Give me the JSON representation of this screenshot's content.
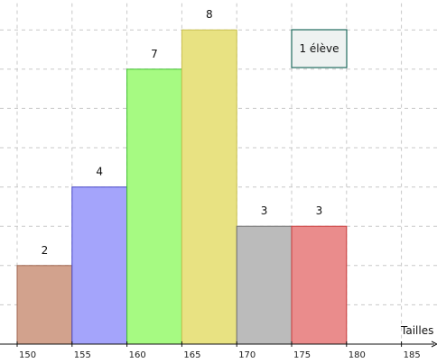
{
  "chart_data": {
    "type": "bar",
    "title": "",
    "xlabel": "Tailles",
    "ylabel": "",
    "bin_edges": [
      150,
      155,
      160,
      165,
      170,
      175,
      180
    ],
    "x_ticks": [
      150,
      155,
      160,
      165,
      170,
      175,
      180,
      185
    ],
    "values": [
      2,
      4,
      7,
      8,
      3,
      3
    ],
    "value_labels": [
      "2",
      "4",
      "7",
      "8",
      "3",
      "3"
    ],
    "ylim": [
      0,
      8.7
    ],
    "grid": true,
    "colors": [
      {
        "fill": "#d2a28d",
        "stroke": "#a0664f"
      },
      {
        "fill": "#a4a4fb",
        "stroke": "#4a4ac8"
      },
      {
        "fill": "#a6fa82",
        "stroke": "#40c030"
      },
      {
        "fill": "#e8e282",
        "stroke": "#c8c050"
      },
      {
        "fill": "#bbbbbb",
        "stroke": "#6e6e6e"
      },
      {
        "fill": "#ea8c8c",
        "stroke": "#c83a3a"
      }
    ],
    "legend": {
      "label": "1 élève",
      "placement": "top-right",
      "border_color": "#1f6b5e",
      "fill": "#eef2f1"
    }
  }
}
